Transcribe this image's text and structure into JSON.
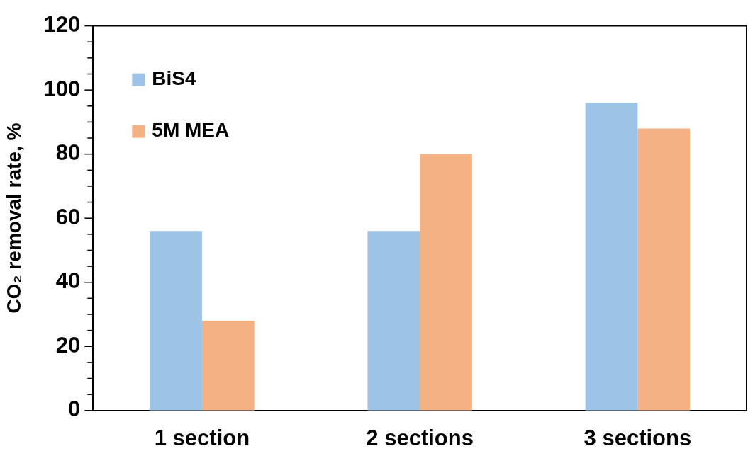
{
  "chart_data": {
    "type": "bar",
    "ylabel": "CO₂ removal rate, %",
    "categories": [
      "1 section",
      "2 sections",
      "3 sections"
    ],
    "series": [
      {
        "name": "BiS4",
        "color": "#9dc3e6",
        "values": [
          56,
          56,
          96
        ]
      },
      {
        "name": "5M MEA",
        "color": "#f4b183",
        "values": [
          28,
          80,
          88
        ]
      }
    ],
    "ylim": [
      0,
      120
    ],
    "yticks": [
      0,
      {
        "value": 5,
        "label": null
      },
      {
        "value": 10,
        "label": null
      },
      {
        "value": 15,
        "label": null
      },
      20,
      {
        "value": 25,
        "label": null
      },
      {
        "value": 30,
        "label": null
      },
      {
        "value": 35,
        "label": null
      },
      40,
      {
        "value": 45,
        "label": null
      },
      {
        "value": 50,
        "label": null
      },
      {
        "value": 55,
        "label": null
      },
      60,
      {
        "value": 65,
        "label": null
      },
      {
        "value": 70,
        "label": null
      },
      {
        "value": 75,
        "label": null
      },
      80,
      {
        "value": 85,
        "label": null
      },
      {
        "value": 90,
        "label": null
      },
      {
        "value": 95,
        "label": null
      },
      100,
      {
        "value": 105,
        "label": null
      },
      {
        "value": 110,
        "label": null
      },
      {
        "value": 115,
        "label": null
      },
      120
    ],
    "grid": false,
    "legend": "top left"
  }
}
